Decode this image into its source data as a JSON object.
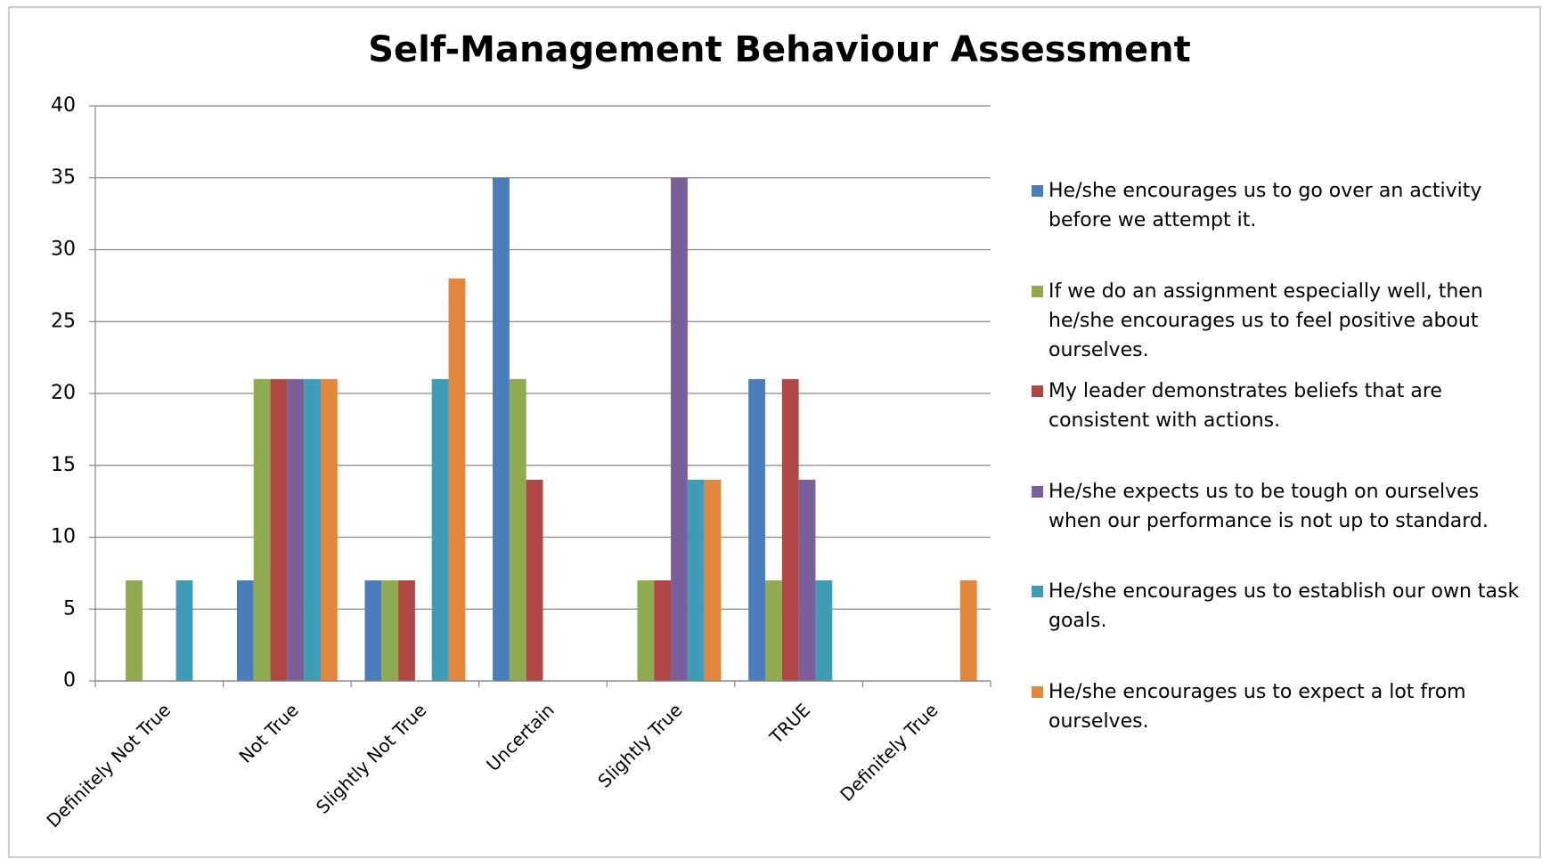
{
  "chart_data": {
    "type": "bar",
    "title": "Self-Management Behaviour Assessment",
    "categories": [
      "Definitely Not True",
      "Not True",
      "Slightly Not True",
      "Uncertain",
      "Slightly True",
      "TRUE",
      "Definitely True"
    ],
    "series": [
      {
        "name": "He/she encourages us to go over an activity before we attempt it.",
        "color": "#4a7ebb",
        "values": [
          0,
          7,
          7,
          35,
          0,
          21,
          0
        ]
      },
      {
        "name": "If we do an assignment especially well, then he/she encourages us to feel positive about ourselves.",
        "color": "#8faa4f",
        "values": [
          7,
          21,
          7,
          21,
          7,
          7,
          0
        ]
      },
      {
        "name": "My leader demonstrates beliefs that are consistent with actions.",
        "color": "#b04745",
        "values": [
          0,
          21,
          7,
          14,
          7,
          21,
          0
        ]
      },
      {
        "name": "He/she expects us to be tough on ourselves when our performance is not up to standard.",
        "color": "#7a5f9b",
        "values": [
          0,
          21,
          0,
          0,
          35,
          14,
          0
        ]
      },
      {
        "name": "He/she encourages us to establish our own task goals.",
        "color": "#3f9cb6",
        "values": [
          7,
          21,
          21,
          0,
          14,
          7,
          0
        ]
      },
      {
        "name": "He/she encourages us to expect a lot from ourselves.",
        "color": "#e3873c",
        "values": [
          0,
          21,
          28,
          0,
          14,
          0,
          7
        ]
      }
    ],
    "ylim": [
      0,
      40
    ],
    "yticks": [
      0,
      5,
      10,
      15,
      20,
      25,
      30,
      35,
      40
    ],
    "grid": true,
    "legend": "right"
  }
}
